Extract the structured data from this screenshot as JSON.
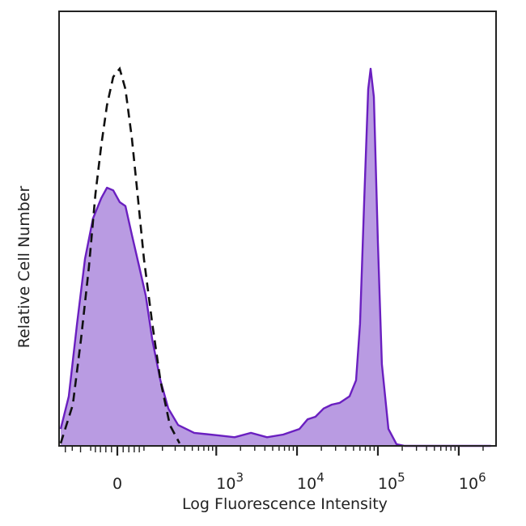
{
  "chart_data": {
    "type": "area",
    "title": "",
    "xlabel": "Log Fluorescence Intensity",
    "ylabel": "Relative Cell Number",
    "x_scale": "biexponential",
    "xlim": [
      -290,
      2500000
    ],
    "ylim": [
      0,
      100
    ],
    "grid": false,
    "legend": "none",
    "x_ticks": [
      {
        "value": 0,
        "label": "0",
        "sup": ""
      },
      {
        "value": 1000,
        "label": "10",
        "sup": "3"
      },
      {
        "value": 10000,
        "label": "10",
        "sup": "4"
      },
      {
        "value": 100000,
        "label": "10",
        "sup": "5"
      },
      {
        "value": 1000000,
        "label": "10",
        "sup": "6"
      }
    ],
    "series": [
      {
        "style": "filled",
        "color": "#6a1fc0",
        "fill": "#b99be2",
        "x": [
          -289,
          -224,
          -170,
          -127,
          -90,
          -57,
          -36,
          -14,
          8,
          28,
          51,
          80,
          108,
          140,
          187,
          242,
          328,
          529,
          1066,
          1690,
          2690,
          4260,
          6760,
          10700,
          13500,
          16900,
          21300,
          26900,
          33800,
          44600,
          53700,
          60200,
          67600,
          75900,
          81300,
          89200,
          100000,
          112000,
          135000,
          170000,
          214000,
          2500000
        ],
        "y": [
          3.9,
          11.4,
          28.1,
          43.0,
          52.3,
          57.0,
          59.4,
          58.8,
          56.1,
          55.2,
          48.6,
          41.2,
          34.6,
          24.4,
          15.1,
          8.6,
          4.8,
          3.0,
          2.4,
          2.0,
          3.0,
          2.0,
          2.6,
          3.9,
          6.1,
          6.7,
          8.6,
          9.5,
          9.9,
          11.4,
          15.1,
          28.1,
          56.1,
          82.1,
          86.8,
          80.3,
          46.7,
          18.8,
          3.9,
          0.4,
          0,
          0
        ]
      },
      {
        "style": "dashed",
        "color": "#111111",
        "x": [
          -289,
          -196,
          -148,
          -108,
          -80,
          -57,
          -36,
          -14,
          8,
          28,
          51,
          73,
          100,
          140,
          187,
          254,
          343
        ],
        "y": [
          0.6,
          9.5,
          24.4,
          41.2,
          57.9,
          69.1,
          78.4,
          84.9,
          86.8,
          82.1,
          70.9,
          57.9,
          43.0,
          28.1,
          15.1,
          4.8,
          0.6
        ]
      }
    ]
  }
}
